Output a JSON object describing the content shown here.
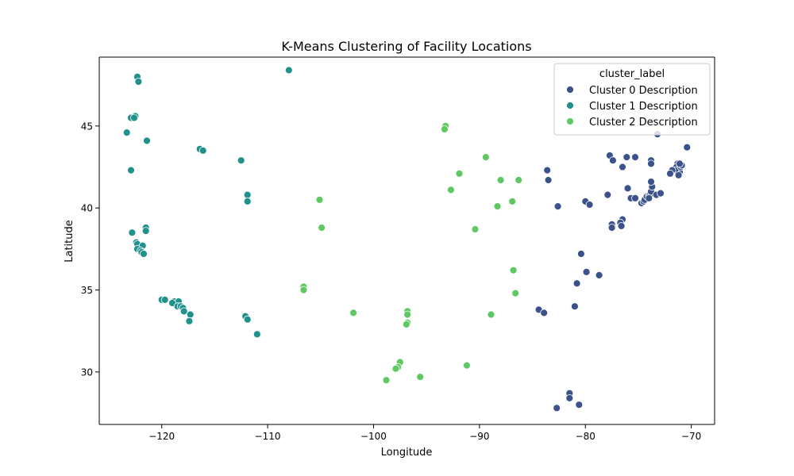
{
  "chart_data": {
    "type": "scatter",
    "title": "K-Means Clustering of Facility Locations",
    "xlabel": "Longitude",
    "ylabel": "Latitude",
    "xlim": [
      -125.9,
      -67.8
    ],
    "ylim": [
      26.8,
      49.2
    ],
    "xticks": [
      -120,
      -110,
      -100,
      -90,
      -80,
      -70
    ],
    "xtick_labels": [
      "−120",
      "−110",
      "−100",
      "−90",
      "−80",
      "−70"
    ],
    "yticks": [
      30,
      35,
      40,
      45
    ],
    "ytick_labels": [
      "30",
      "35",
      "40",
      "45"
    ],
    "grid": false,
    "legend": {
      "title": "cluster_label",
      "placement": "upper-right"
    },
    "series": [
      {
        "name": "Cluster 0 Description",
        "color": "#3b528b",
        "points": [
          [
            -73.2,
            44.5
          ],
          [
            -70.4,
            43.7
          ],
          [
            -77.7,
            43.2
          ],
          [
            -77.4,
            42.9
          ],
          [
            -76.1,
            43.1
          ],
          [
            -75.3,
            43.1
          ],
          [
            -76.5,
            42.5
          ],
          [
            -73.8,
            42.9
          ],
          [
            -73.8,
            42.7
          ],
          [
            -71.1,
            42.4
          ],
          [
            -71.3,
            42.7
          ],
          [
            -71.0,
            42.6
          ],
          [
            -71.4,
            42.5
          ],
          [
            -71.1,
            42.2
          ],
          [
            -71.5,
            42.3
          ],
          [
            -71.8,
            42.3
          ],
          [
            -72.0,
            42.1
          ],
          [
            -71.2,
            42.0
          ],
          [
            -71.0,
            42.5
          ],
          [
            -70.9,
            42.6
          ],
          [
            -71.1,
            42.7
          ],
          [
            -83.6,
            42.3
          ],
          [
            -83.5,
            41.7
          ],
          [
            -82.6,
            40.1
          ],
          [
            -80.0,
            40.4
          ],
          [
            -79.6,
            40.2
          ],
          [
            -77.9,
            40.8
          ],
          [
            -76.0,
            41.2
          ],
          [
            -75.7,
            40.6
          ],
          [
            -75.3,
            40.6
          ],
          [
            -74.7,
            40.3
          ],
          [
            -74.5,
            40.4
          ],
          [
            -74.4,
            40.5
          ],
          [
            -74.2,
            40.7
          ],
          [
            -74.0,
            40.8
          ],
          [
            -73.9,
            40.8
          ],
          [
            -73.8,
            41.0
          ],
          [
            -73.7,
            41.3
          ],
          [
            -73.8,
            41.6
          ],
          [
            -73.3,
            40.8
          ],
          [
            -72.9,
            40.9
          ],
          [
            -74.0,
            40.6
          ],
          [
            -77.5,
            39.0
          ],
          [
            -77.5,
            38.8
          ],
          [
            -76.5,
            39.3
          ],
          [
            -76.7,
            39.1
          ],
          [
            -76.6,
            38.9
          ],
          [
            -80.4,
            37.2
          ],
          [
            -79.9,
            36.1
          ],
          [
            -78.7,
            35.9
          ],
          [
            -80.8,
            35.4
          ],
          [
            -84.4,
            33.8
          ],
          [
            -83.9,
            33.6
          ],
          [
            -81.0,
            34.0
          ],
          [
            -81.5,
            28.7
          ],
          [
            -81.5,
            28.4
          ],
          [
            -80.6,
            28.0
          ],
          [
            -82.7,
            27.8
          ]
        ]
      },
      {
        "name": "Cluster 1 Description",
        "color": "#21918c",
        "points": [
          [
            -108.0,
            48.4
          ],
          [
            -122.3,
            48.0
          ],
          [
            -122.2,
            47.7
          ],
          [
            -122.5,
            45.6
          ],
          [
            -122.9,
            45.5
          ],
          [
            -122.6,
            45.5
          ],
          [
            -123.3,
            44.6
          ],
          [
            -121.4,
            44.1
          ],
          [
            -122.9,
            42.3
          ],
          [
            -116.4,
            43.6
          ],
          [
            -116.1,
            43.5
          ],
          [
            -112.5,
            42.9
          ],
          [
            -111.9,
            40.8
          ],
          [
            -111.9,
            40.4
          ],
          [
            -122.8,
            38.5
          ],
          [
            -121.5,
            38.8
          ],
          [
            -121.5,
            38.6
          ],
          [
            -122.4,
            37.9
          ],
          [
            -122.3,
            37.8
          ],
          [
            -121.8,
            37.7
          ],
          [
            -122.3,
            37.5
          ],
          [
            -122.0,
            37.4
          ],
          [
            -121.9,
            37.3
          ],
          [
            -121.7,
            37.2
          ],
          [
            -120.0,
            34.4
          ],
          [
            -119.7,
            34.4
          ],
          [
            -118.8,
            34.3
          ],
          [
            -118.4,
            34.3
          ],
          [
            -119.0,
            34.2
          ],
          [
            -118.5,
            34.0
          ],
          [
            -118.2,
            34.0
          ],
          [
            -118.0,
            33.9
          ],
          [
            -117.9,
            33.7
          ],
          [
            -117.3,
            33.5
          ],
          [
            -117.4,
            33.1
          ],
          [
            -112.1,
            33.4
          ],
          [
            -111.9,
            33.2
          ],
          [
            -111.0,
            32.3
          ]
        ]
      },
      {
        "name": "Cluster 2 Description",
        "color": "#5ec962",
        "points": [
          [
            -93.2,
            45.0
          ],
          [
            -93.3,
            44.8
          ],
          [
            -89.4,
            43.1
          ],
          [
            -91.9,
            42.1
          ],
          [
            -88.0,
            41.7
          ],
          [
            -86.3,
            41.7
          ],
          [
            -92.7,
            41.1
          ],
          [
            -88.3,
            40.1
          ],
          [
            -86.9,
            40.4
          ],
          [
            -105.1,
            40.5
          ],
          [
            -104.9,
            38.8
          ],
          [
            -90.4,
            38.7
          ],
          [
            -86.8,
            36.2
          ],
          [
            -86.6,
            34.8
          ],
          [
            -106.6,
            35.2
          ],
          [
            -106.6,
            35.0
          ],
          [
            -101.9,
            33.6
          ],
          [
            -88.9,
            33.5
          ],
          [
            -96.8,
            33.7
          ],
          [
            -96.8,
            33.5
          ],
          [
            -96.8,
            33.0
          ],
          [
            -96.9,
            32.9
          ],
          [
            -97.5,
            30.6
          ],
          [
            -97.7,
            30.3
          ],
          [
            -97.9,
            30.2
          ],
          [
            -98.8,
            29.5
          ],
          [
            -95.6,
            29.7
          ],
          [
            -91.2,
            30.4
          ]
        ]
      }
    ]
  }
}
